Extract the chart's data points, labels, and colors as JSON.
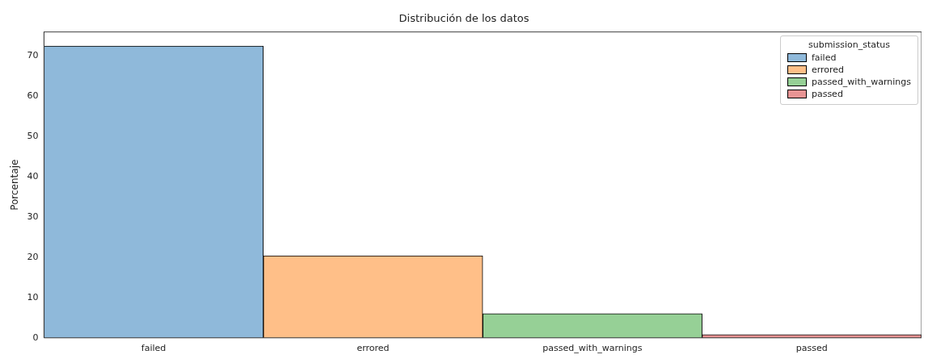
{
  "chart_data": {
    "type": "bar",
    "title": "Distribución de los datos",
    "ylabel": "Porcentaje",
    "legend_title": "submission_status",
    "categories": [
      "failed",
      "errored",
      "passed_with_warnings",
      "passed"
    ],
    "series": [
      {
        "name": "failed",
        "color": "#8fb9da",
        "values": [
          72.5,
          null,
          null,
          null
        ]
      },
      {
        "name": "errored",
        "color": "#ffbf88",
        "values": [
          null,
          20.4,
          null,
          null
        ]
      },
      {
        "name": "passed_with_warnings",
        "color": "#96d096",
        "values": [
          null,
          null,
          6.0,
          null
        ]
      },
      {
        "name": "passed",
        "color": "#e89494",
        "values": [
          null,
          null,
          null,
          0.8
        ]
      }
    ],
    "ylim": [
      0,
      76
    ],
    "yticks": [
      0,
      10,
      20,
      30,
      40,
      50,
      60,
      70
    ],
    "grid": false,
    "legend": "top right"
  }
}
